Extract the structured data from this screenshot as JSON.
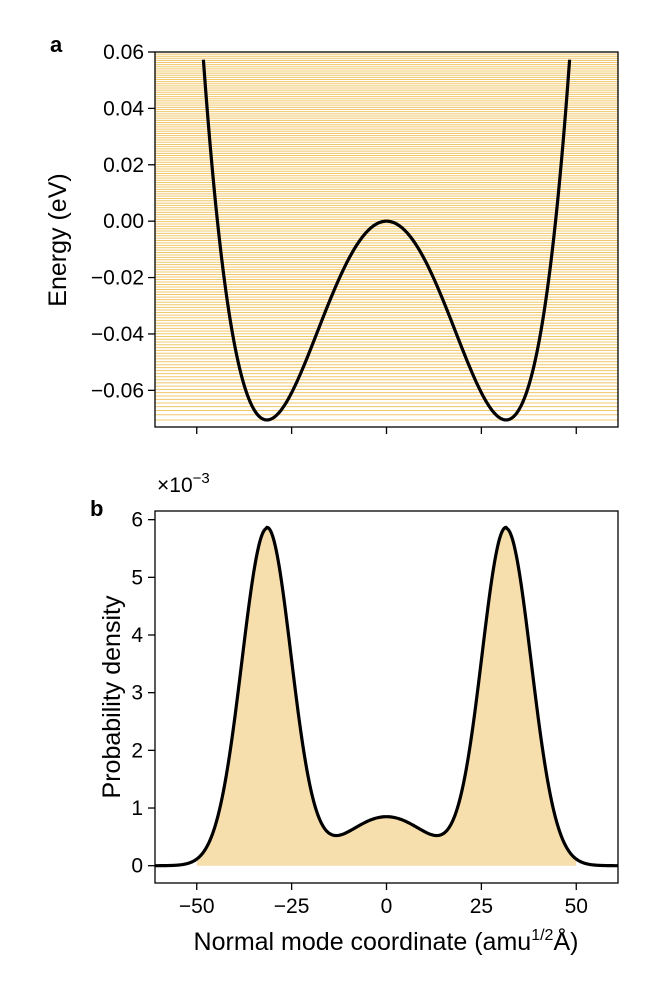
{
  "chart_data": [
    {
      "panel_label": "a",
      "type": "line",
      "title": "",
      "xlabel": "",
      "ylabel": "Energy (eV)",
      "xlim": [
        -61,
        61
      ],
      "ylim": [
        -0.073,
        0.06
      ],
      "x_ticks": [
        -50,
        -25,
        0,
        25,
        50
      ],
      "y_ticks": [
        0.06,
        0.04,
        0.02,
        0.0,
        -0.02,
        -0.04,
        -0.06
      ],
      "y_tick_labels": [
        "0.06",
        "0.04",
        "0.02",
        "0.00",
        "−0.02",
        "−0.04",
        "−0.06"
      ],
      "potential": {
        "form": "double_well",
        "min_positions": [
          -31.5,
          31.5
        ],
        "min_energy": -0.0705,
        "barrier_energy": 0.0
      },
      "energy_levels": {
        "description": "horizontal eigenenergy lines",
        "minimum": -0.0705,
        "maximum": 0.06,
        "count": 150,
        "color": "#eeba45"
      },
      "line_color": "#000000",
      "grid": false
    },
    {
      "panel_label": "b",
      "type": "area",
      "title": "",
      "xlabel": "Normal mode coordinate (amu",
      "xlabel_superscript": "1/2",
      "xlabel_suffix": "Å)",
      "ylabel": "Probability density",
      "scale_label": "×10",
      "scale_exponent": "−3",
      "xlim": [
        -61,
        61
      ],
      "ylim": [
        -0.3,
        6.15
      ],
      "x_ticks": [
        -50,
        -25,
        0,
        25,
        50
      ],
      "x_tick_labels": [
        "−50",
        "−25",
        "0",
        "25",
        "50"
      ],
      "y_ticks": [
        0,
        1,
        2,
        3,
        4,
        5,
        6
      ],
      "y_tick_labels": [
        "0",
        "1",
        "2",
        "3",
        "4",
        "5",
        "6"
      ],
      "series": {
        "name": "probability density",
        "peaks": [
          -31.5,
          31.5
        ],
        "peak_value": 5.85,
        "center_value": 0.85,
        "edge_value": 0.0
      },
      "fill_color": "#f6dfac",
      "line_color": "#000000",
      "grid": false
    }
  ]
}
